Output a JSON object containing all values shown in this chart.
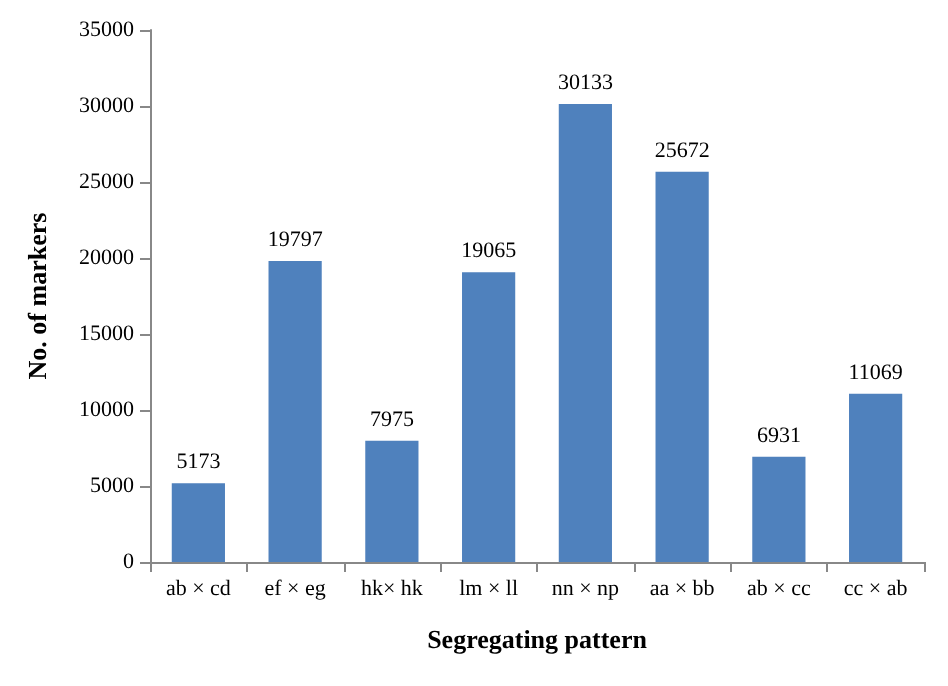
{
  "chart_data": {
    "type": "bar",
    "xlabel": "Segregating pattern",
    "ylabel": "No. of markers",
    "categories": [
      "ab × cd",
      "ef × eg",
      "hk× hk",
      "lm × ll",
      "nn × np",
      "aa × bb",
      "ab × cc",
      "cc × ab"
    ],
    "values": [
      5173,
      19797,
      7975,
      19065,
      30133,
      25672,
      6931,
      11069
    ],
    "color": "#4f81bd",
    "ylim": [
      0,
      35000
    ],
    "yticks": [
      0,
      5000,
      10000,
      15000,
      20000,
      25000,
      30000,
      35000
    ],
    "grid": false,
    "data_labels": true
  }
}
